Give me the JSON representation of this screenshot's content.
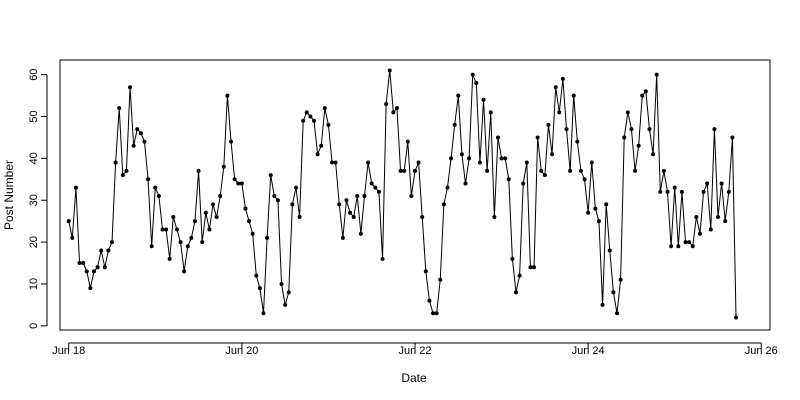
{
  "chart_data": {
    "type": "line",
    "title": "",
    "xlabel": "Date",
    "ylabel": "Post Number",
    "xlim": [
      "2016-06-17T21:35",
      "2016-06-26T02:25"
    ],
    "ylim": [
      -1,
      63.5
    ],
    "x_ticks": [
      {
        "value": "2016-06-18",
        "label": "Jun 18"
      },
      {
        "value": "2016-06-20",
        "label": "Jun 20"
      },
      {
        "value": "2016-06-22",
        "label": "Jun 22"
      },
      {
        "value": "2016-06-24",
        "label": "Jun 24"
      },
      {
        "value": "2016-06-26",
        "label": "Jun 26"
      }
    ],
    "y_ticks": [
      0,
      10,
      20,
      30,
      40,
      50,
      60
    ],
    "grid": false,
    "series": [
      {
        "x_start": "2016-06-18T00:00",
        "step_hours": 1,
        "values": [
          25,
          21,
          33,
          15,
          15,
          13,
          9,
          13,
          14,
          18,
          14,
          18,
          20,
          39,
          52,
          36,
          37,
          57,
          43,
          47,
          46,
          44,
          35,
          19,
          33,
          31,
          23,
          23,
          16,
          26,
          23,
          20,
          13,
          19,
          21,
          25,
          37,
          20,
          27,
          23,
          29,
          26,
          31,
          38,
          55,
          44,
          35,
          34,
          34,
          28,
          25,
          22,
          12,
          9,
          3,
          21,
          36,
          31,
          30,
          10,
          5,
          8,
          29,
          33,
          26,
          49,
          51,
          50,
          49,
          41,
          43,
          52,
          48,
          39,
          39,
          29,
          21,
          30,
          27,
          26,
          31,
          22,
          31,
          39,
          34,
          33,
          32,
          16,
          53,
          61,
          51,
          52,
          37,
          37,
          44,
          31,
          37,
          39,
          26,
          13,
          6,
          3,
          3,
          11,
          29,
          33,
          40,
          48,
          55,
          41,
          34,
          40,
          60,
          58,
          39,
          54,
          37,
          51,
          26,
          45,
          40,
          40,
          35,
          16,
          8,
          12,
          34,
          39,
          14,
          14,
          45,
          37,
          36,
          48,
          41,
          57,
          51,
          59,
          47,
          37,
          55,
          44,
          37,
          35,
          27,
          39,
          28,
          25,
          5,
          29,
          18,
          8,
          3,
          11,
          45,
          51,
          47,
          37,
          43,
          55,
          56,
          47,
          41,
          60,
          32,
          37,
          32,
          19,
          33,
          19,
          32,
          20,
          20,
          19,
          26,
          22,
          32,
          34,
          23,
          47,
          26,
          34,
          25,
          32,
          45,
          2
        ]
      }
    ]
  }
}
